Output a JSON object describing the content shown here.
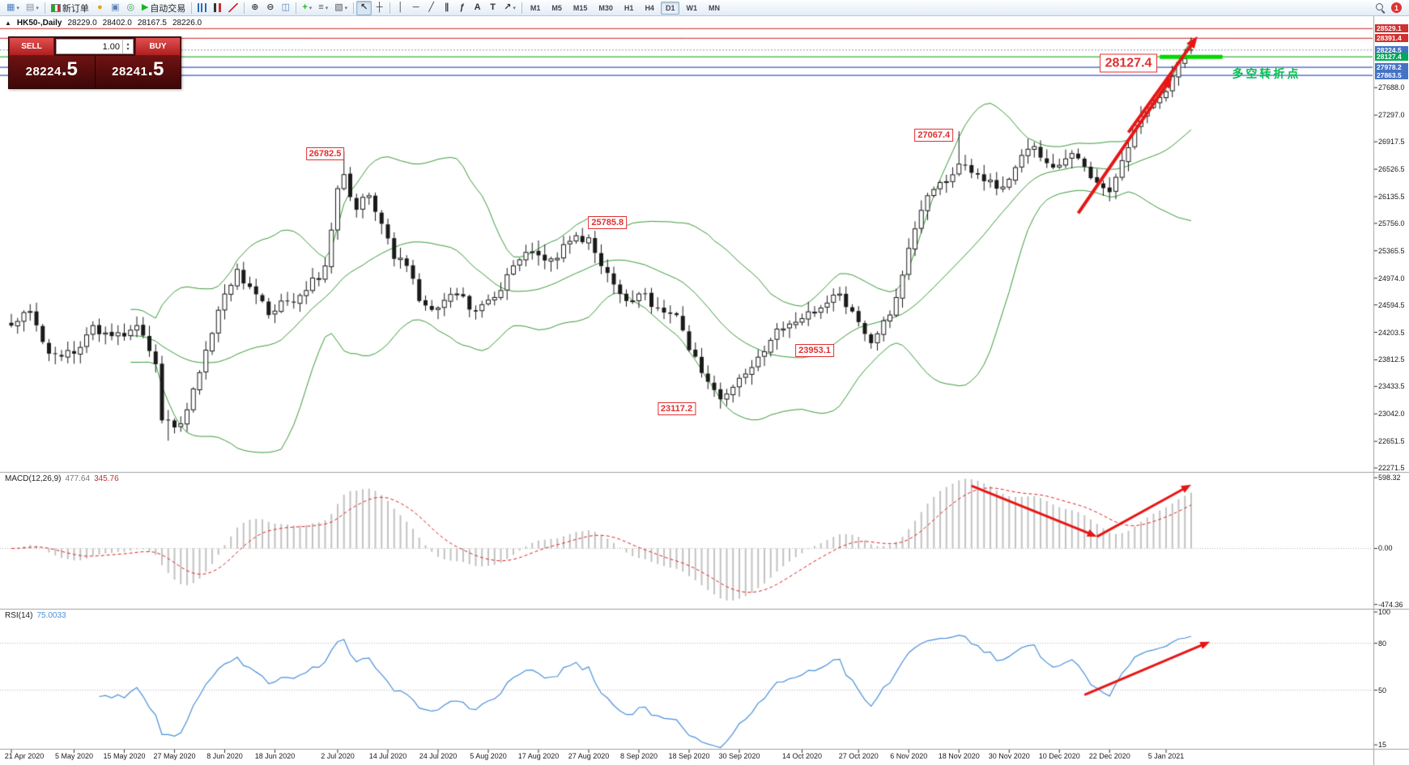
{
  "app": {
    "badge_count": "1"
  },
  "toolbar": {
    "items": [
      {
        "name": "new-chart-button",
        "glyph": "▦",
        "color": "#4f81bd",
        "dropdown": true
      },
      {
        "name": "profiles-button",
        "glyph": "▤",
        "color": "#7f93a6",
        "dropdown": true
      },
      {
        "type": "sep"
      },
      {
        "name": "new-order-button",
        "icon": "order",
        "label": "新订单"
      },
      {
        "name": "scripts-button",
        "glyph": "●",
        "color": "#dfa520"
      },
      {
        "name": "print-button",
        "glyph": "▣",
        "color": "#5b7fb5"
      },
      {
        "name": "community-button",
        "glyph": "◎",
        "color": "#35a04a"
      },
      {
        "name": "autotrading-button",
        "glyph": "▶",
        "color": "#1db31d",
        "label": "自动交易"
      },
      {
        "type": "sep"
      },
      {
        "name": "bar-chart-button",
        "icon": "bars"
      },
      {
        "name": "candlestick-chart-button",
        "icon": "candles"
      },
      {
        "name": "line-chart-button",
        "icon": "line"
      },
      {
        "type": "sep"
      },
      {
        "name": "zoom-in-button",
        "glyph": "⊕",
        "color": "#444"
      },
      {
        "name": "zoom-out-button",
        "glyph": "⊖",
        "color": "#444"
      },
      {
        "name": "tile-windows-button",
        "glyph": "◫",
        "color": "#4f81bd"
      },
      {
        "type": "sep"
      },
      {
        "name": "indicators-button",
        "glyph": "+",
        "color": "#1db31d",
        "dropdown": true
      },
      {
        "name": "periods-button",
        "glyph": "≡",
        "color": "#555",
        "dropdown": true
      },
      {
        "name": "templates-button",
        "glyph": "▧",
        "color": "#555",
        "dropdown": true
      },
      {
        "type": "sep"
      },
      {
        "name": "cursor-button",
        "glyph": "↖",
        "color": "#333",
        "active": true
      },
      {
        "name": "crosshair-button",
        "glyph": "┼",
        "color": "#333"
      },
      {
        "type": "sep"
      },
      {
        "name": "vertical-line-button",
        "glyph": "│",
        "color": "#333"
      },
      {
        "name": "horizontal-line-button",
        "glyph": "─",
        "color": "#333"
      },
      {
        "name": "trendline-button",
        "glyph": "╱",
        "color": "#333"
      },
      {
        "name": "channel-button",
        "glyph": "∥",
        "color": "#333"
      },
      {
        "name": "fibonacci-button",
        "glyph": "ƒ",
        "color": "#333"
      },
      {
        "name": "text-button",
        "glyph": "A",
        "color": "#333"
      },
      {
        "name": "label-button",
        "glyph": "T",
        "color": "#333"
      },
      {
        "name": "arrows-button",
        "glyph": "↗",
        "color": "#333",
        "dropdown": true
      },
      {
        "type": "sep"
      }
    ],
    "timeframes": [
      "M1",
      "M5",
      "M15",
      "M30",
      "H1",
      "H4",
      "D1",
      "W1",
      "MN"
    ],
    "active_timeframe": "D1"
  },
  "chart_header": {
    "symbol": "HK50-,Daily",
    "open": "28229.0",
    "high": "28402.0",
    "low": "28167.5",
    "close": "28226.0",
    "collapse_icon": "▲"
  },
  "trade_panel": {
    "sell_label": "SELL",
    "buy_label": "BUY",
    "volume": "1.00",
    "spin_up": "▴",
    "spin_down": "▾",
    "sell_price_main": "28224",
    "sell_price_frac": ".5",
    "buy_price_main": "28241",
    "buy_price_frac": ".5"
  },
  "indicators": {
    "macd_label": "MACD(12,26,9)",
    "macd_value_1": "477.64",
    "macd_value_2": "345.76",
    "rsi_label": "RSI(14)",
    "rsi_value": "75.0033"
  },
  "axes": {
    "price_ticks": [
      {
        "v": 27688.0,
        "t": "27688.0"
      },
      {
        "v": 27297.0,
        "t": "27297.0"
      },
      {
        "v": 26917.5,
        "t": "26917.5"
      },
      {
        "v": 26526.5,
        "t": "26526.5"
      },
      {
        "v": 26135.5,
        "t": "26135.5"
      },
      {
        "v": 25756.0,
        "t": "25756.0"
      },
      {
        "v": 25365.5,
        "t": "25365.5"
      },
      {
        "v": 24974.0,
        "t": "24974.0"
      },
      {
        "v": 24594.5,
        "t": "24594.5"
      },
      {
        "v": 24203.5,
        "t": "24203.5"
      },
      {
        "v": 23812.5,
        "t": "23812.5"
      },
      {
        "v": 23433.5,
        "t": "23433.5"
      },
      {
        "v": 23042.0,
        "t": "23042.0"
      },
      {
        "v": 22651.5,
        "t": "22651.5"
      },
      {
        "v": 22271.5,
        "t": "22271.5"
      }
    ],
    "price_tags": [
      {
        "v": 28529.1,
        "t": "28529.1",
        "bg": "#d03030"
      },
      {
        "v": 28391.4,
        "t": "28391.4",
        "bg": "#d03030"
      },
      {
        "v": 28224.5,
        "t": "28224.5",
        "bg": "#4472c4"
      },
      {
        "v": 28127.4,
        "t": "28127.4",
        "bg": "#00a859"
      },
      {
        "v": 27978.2,
        "t": "27978.2",
        "bg": "#4472c4"
      },
      {
        "v": 27863.5,
        "t": "27863.5",
        "bg": "#4472c4"
      }
    ],
    "macd_ticks": [
      {
        "v": 598.32,
        "t": "598.32"
      },
      {
        "v": 0,
        "t": "0.00",
        "dotted": true
      },
      {
        "v": -474.36,
        "t": "-474.36"
      }
    ],
    "rsi_ticks": [
      {
        "v": 100,
        "t": "100"
      },
      {
        "v": 80,
        "t": "80",
        "dotted": true
      },
      {
        "v": 50,
        "t": "50",
        "dotted": true
      },
      {
        "v": 15,
        "t": "15"
      }
    ],
    "dates": [
      {
        "bar": 0,
        "label": "21 Apr 2020"
      },
      {
        "bar": 10,
        "label": "5 May 2020"
      },
      {
        "bar": 18,
        "label": "15 May 2020"
      },
      {
        "bar": 26,
        "label": "27 May 2020"
      },
      {
        "bar": 34,
        "label": "8 Jun 2020"
      },
      {
        "bar": 42,
        "label": "18 Jun 2020"
      },
      {
        "bar": 52,
        "label": "2 Jul 2020"
      },
      {
        "bar": 60,
        "label": "14 Jul 2020"
      },
      {
        "bar": 68,
        "label": "24 Jul 2020"
      },
      {
        "bar": 76,
        "label": "5 Aug 2020"
      },
      {
        "bar": 84,
        "label": "17 Aug 2020"
      },
      {
        "bar": 92,
        "label": "27 Aug 2020"
      },
      {
        "bar": 100,
        "label": "8 Sep 2020"
      },
      {
        "bar": 108,
        "label": "18 Sep 2020"
      },
      {
        "bar": 116,
        "label": "30 Sep 2020"
      },
      {
        "bar": 126,
        "label": "14 Oct 2020"
      },
      {
        "bar": 135,
        "label": "27 Oct 2020"
      },
      {
        "bar": 143,
        "label": "6 Nov 2020"
      },
      {
        "bar": 151,
        "label": "18 Nov 2020"
      },
      {
        "bar": 159,
        "label": "30 Nov 2020"
      },
      {
        "bar": 167,
        "label": "10 Dec 2020"
      },
      {
        "bar": 175,
        "label": "22 Dec 2020"
      },
      {
        "bar": 184,
        "label": "5 Jan 2021"
      }
    ]
  },
  "levels": [
    {
      "price": 28529.1,
      "color": "#cc2222",
      "width": 1
    },
    {
      "price": 28391.4,
      "color": "#cc2222",
      "width": 1
    },
    {
      "price": 28224.5,
      "color": "#8899aa",
      "width": 1,
      "dash": [
        2,
        2
      ]
    },
    {
      "price": 28127.4,
      "color": "#00a000",
      "width": 1
    },
    {
      "price": 27978.2,
      "color": "#3a55c8",
      "width": 1.2
    },
    {
      "price": 27863.5,
      "color": "#3a55c8",
      "width": 1.2
    }
  ],
  "annotations": {
    "price_labels": [
      {
        "text": "26782.5",
        "bar": 50,
        "price": 26750
      },
      {
        "text": "25785.8",
        "bar": 95,
        "price": 25770
      },
      {
        "text": "23953.1",
        "bar": 128,
        "price": 23945
      },
      {
        "text": "23117.2",
        "bar": 106,
        "price": 23120
      },
      {
        "text": "27067.4",
        "bar": 147,
        "price": 27010
      }
    ],
    "big_label": {
      "text": "28127.4",
      "bar": 178,
      "price": 28040
    },
    "turning_text": {
      "text": "多空转折点",
      "bar": 200,
      "price": 27890
    },
    "green_segment": {
      "price": 28127.4,
      "bar_start": 183,
      "bar_end": 193
    },
    "arrows_main": [
      {
        "b1": 170,
        "p1": 25900,
        "b2": 185,
        "p2": 27850
      },
      {
        "b1": 178,
        "p1": 27050,
        "b2": 189,
        "p2": 28420
      }
    ],
    "arrows_macd": [
      {
        "b1": 153,
        "v1": 530,
        "b2": 173,
        "v2": 100
      },
      {
        "b1": 173,
        "v1": 100,
        "b2": 188,
        "v2": 540
      }
    ],
    "arrow_rsi": {
      "b1": 171,
      "v1": 47,
      "b2": 191,
      "v2": 81
    }
  },
  "chart_data": {
    "type": "candlestick",
    "symbol": "HK50",
    "timeframe": "Daily",
    "ohlc_current": {
      "open": 28229.0,
      "high": 28402.0,
      "low": 28167.5,
      "close": 28226.0
    },
    "bars_total": 189,
    "seed": 42,
    "ylim": [
      22250,
      28660
    ],
    "macd_lim": [
      -490,
      620
    ],
    "rsi_lim": [
      13,
      100
    ],
    "indicators": {
      "bollinger_period": 20,
      "bollinger_deviation": 2,
      "macd": [
        12,
        26,
        9
      ],
      "rsi": 14
    },
    "price_anchors": [
      [
        0,
        24300
      ],
      [
        3,
        24500
      ],
      [
        6,
        23900
      ],
      [
        10,
        23900
      ],
      [
        13,
        24300
      ],
      [
        16,
        24150
      ],
      [
        20,
        24300
      ],
      [
        23,
        23750
      ],
      [
        24,
        22950
      ],
      [
        26,
        22850
      ],
      [
        28,
        23100
      ],
      [
        31,
        23950
      ],
      [
        34,
        24750
      ],
      [
        36,
        25100
      ],
      [
        38,
        24850
      ],
      [
        41,
        24450
      ],
      [
        44,
        24650
      ],
      [
        47,
        24800
      ],
      [
        50,
        25150
      ],
      [
        52,
        26250
      ],
      [
        53,
        26450
      ],
      [
        55,
        25950
      ],
      [
        57,
        26150
      ],
      [
        59,
        25750
      ],
      [
        61,
        25250
      ],
      [
        63,
        25150
      ],
      [
        65,
        24650
      ],
      [
        68,
        24550
      ],
      [
        71,
        24750
      ],
      [
        74,
        24500
      ],
      [
        77,
        24700
      ],
      [
        80,
        25150
      ],
      [
        83,
        25350
      ],
      [
        86,
        25250
      ],
      [
        89,
        25500
      ],
      [
        92,
        25550
      ],
      [
        95,
        25050
      ],
      [
        98,
        24650
      ],
      [
        100,
        24750
      ],
      [
        103,
        24550
      ],
      [
        106,
        24450
      ],
      [
        108,
        23950
      ],
      [
        111,
        23500
      ],
      [
        113,
        23250
      ],
      [
        116,
        23550
      ],
      [
        119,
        23850
      ],
      [
        122,
        24250
      ],
      [
        126,
        24400
      ],
      [
        129,
        24550
      ],
      [
        132,
        24750
      ],
      [
        135,
        24350
      ],
      [
        137,
        24050
      ],
      [
        140,
        24450
      ],
      [
        143,
        25400
      ],
      [
        146,
        26150
      ],
      [
        149,
        26350
      ],
      [
        151,
        26600
      ],
      [
        154,
        26450
      ],
      [
        157,
        26250
      ],
      [
        160,
        26550
      ],
      [
        163,
        26850
      ],
      [
        166,
        26550
      ],
      [
        169,
        26750
      ],
      [
        172,
        26400
      ],
      [
        175,
        26200
      ],
      [
        177,
        26650
      ],
      [
        179,
        27150
      ],
      [
        181,
        27400
      ],
      [
        183,
        27550
      ],
      [
        185,
        27850
      ],
      [
        187,
        28100
      ],
      [
        188,
        28226
      ]
    ],
    "overrides": {
      "25": {
        "low": 22660
      },
      "53": {
        "high": 26782.5
      },
      "113": {
        "low": 23117.2
      },
      "151": {
        "high": 27067.4
      },
      "188": {
        "open": 28229.0,
        "high": 28402.0,
        "low": 28167.5,
        "close": 28226.0
      }
    }
  }
}
